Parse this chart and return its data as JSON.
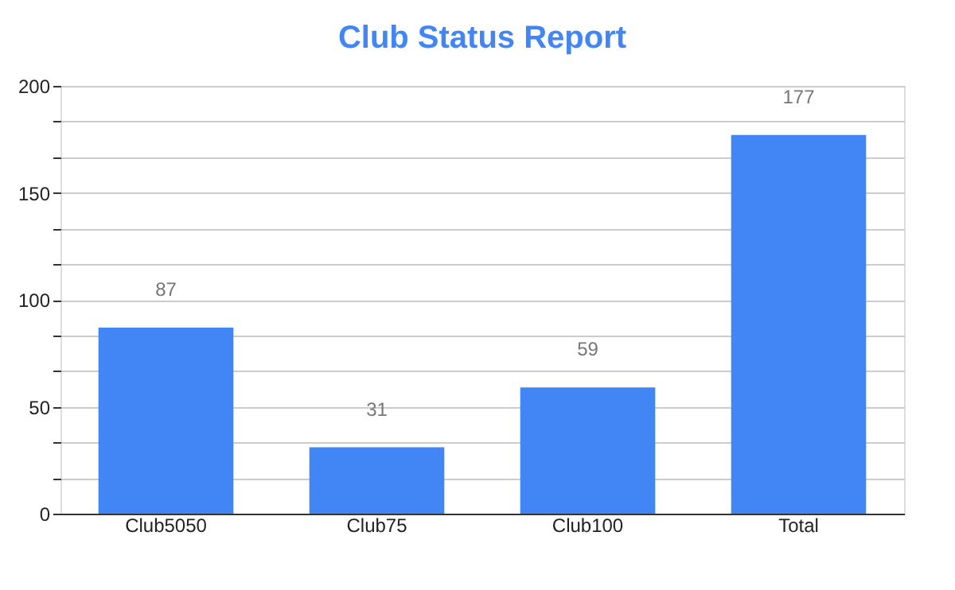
{
  "chart_data": {
    "type": "bar",
    "title": "Club Status Report",
    "categories": [
      "Club5050",
      "Club75",
      "Club100",
      "Total"
    ],
    "values": [
      87,
      31,
      59,
      177
    ],
    "color": "#4285f4",
    "ylim": [
      0,
      200
    ],
    "yticks": [
      0,
      {
        "value": 16.666666666666668,
        "label": null
      },
      {
        "value": 33.333333333333336,
        "label": null
      },
      50,
      {
        "value": 66.66666666666667,
        "label": null
      },
      {
        "value": 83.33333333333333,
        "label": null
      },
      100,
      {
        "value": 116.66666666666667,
        "label": null
      },
      {
        "value": 133.33333333333334,
        "label": null
      },
      150,
      {
        "value": 166.66666666666666,
        "label": null
      },
      {
        "value": 183.33333333333334,
        "label": null
      },
      200
    ],
    "grid": true,
    "data_labels": true
  }
}
